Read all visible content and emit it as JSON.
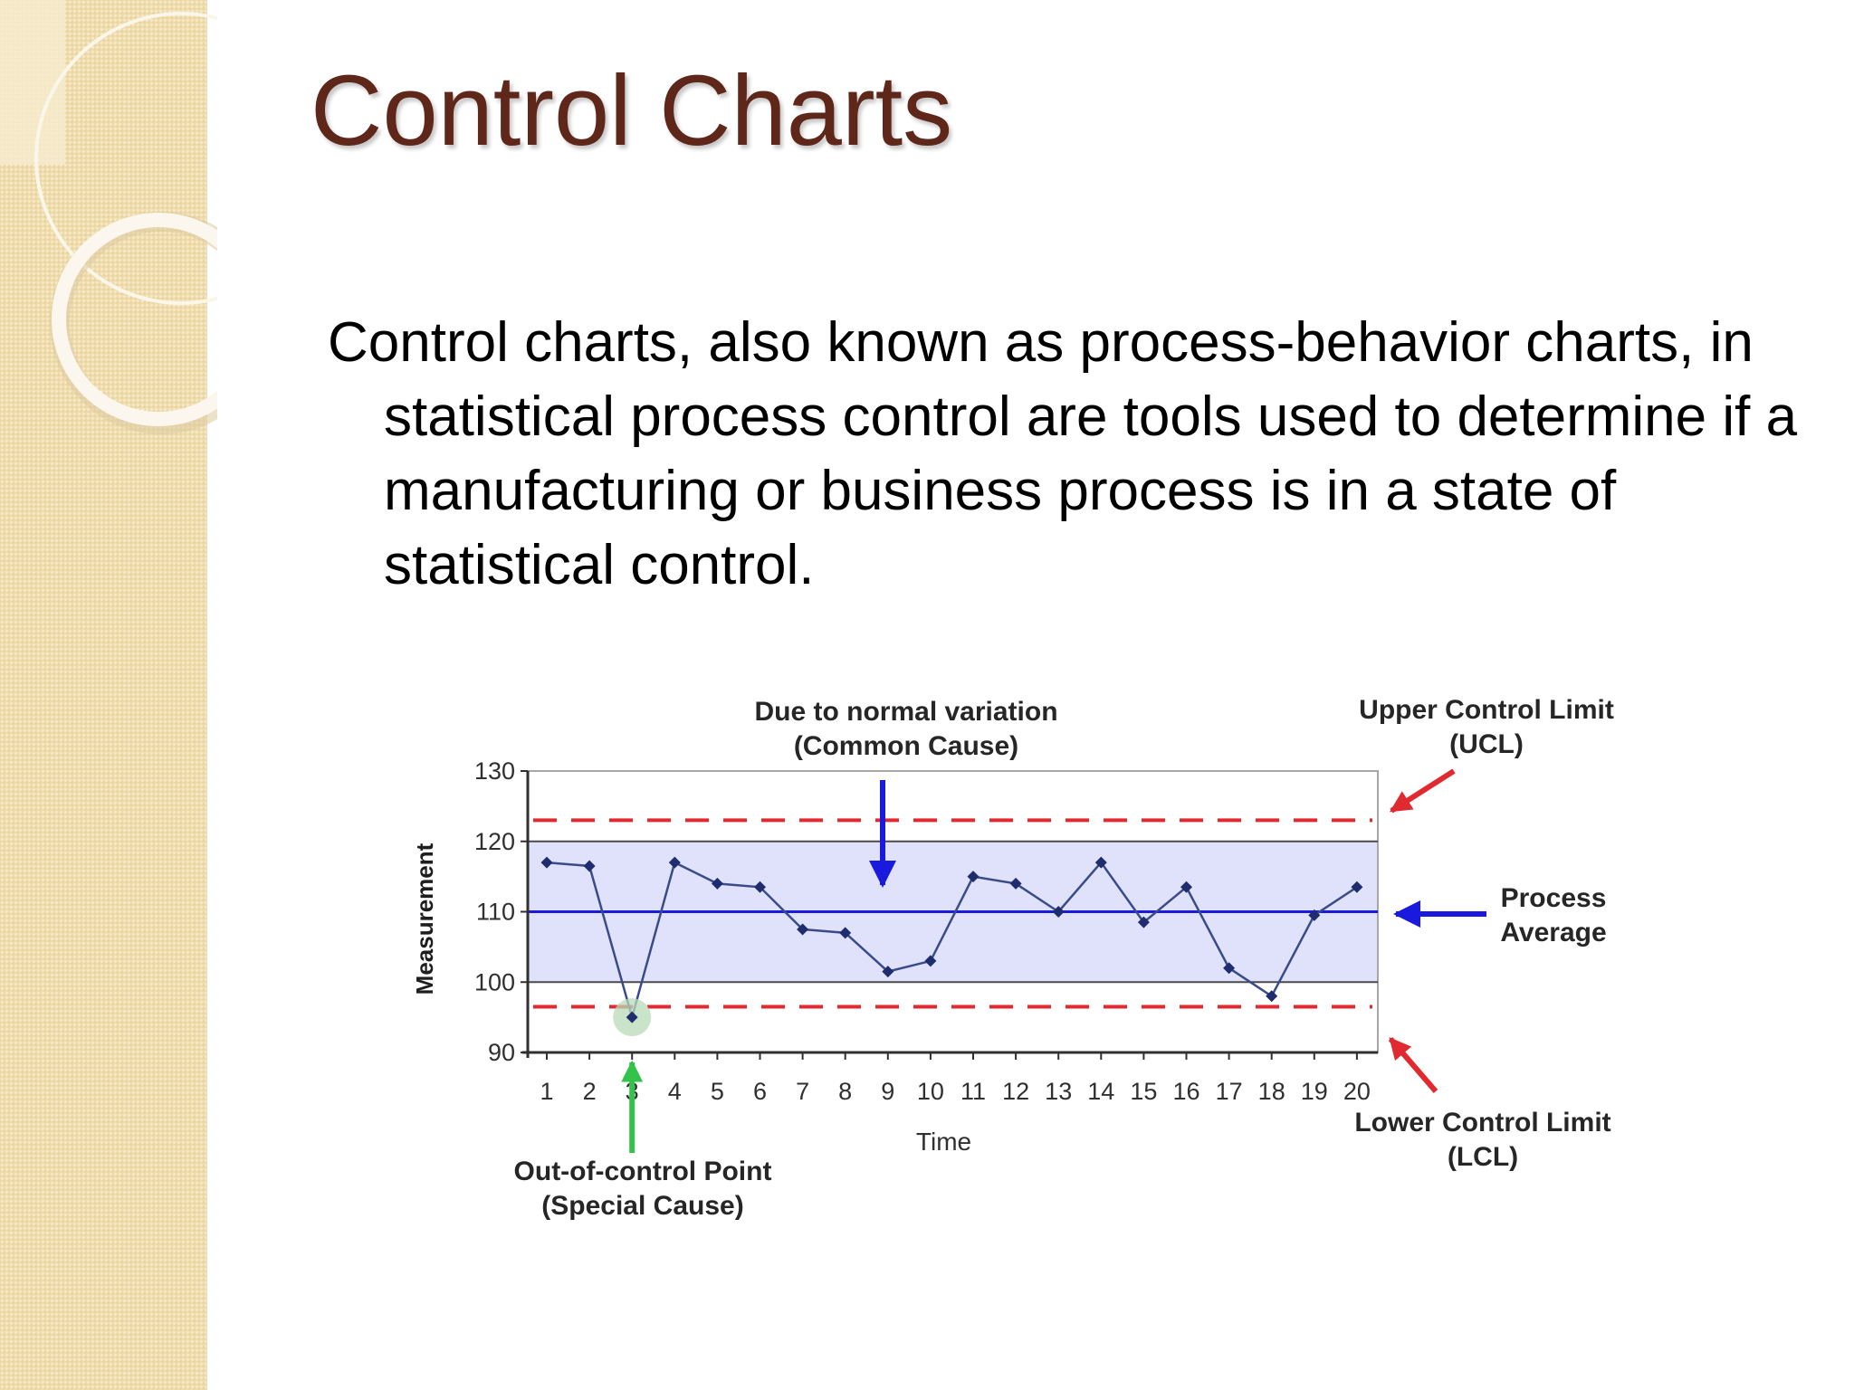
{
  "title": "Control Charts",
  "body": "Control charts, also known as process-behavior charts, in  statistical process control are tools used to determine if a manufacturing or business process is in a state of statistical control.",
  "colors": {
    "title": "#5e271a",
    "sidebar": "#efdcaa",
    "series_line": "#3a4b8a",
    "average_line": "#1a1adf",
    "limit_line": "#e02a30",
    "band_fill": "#dfe2fa",
    "common_cause_arrow": "#1a1adf",
    "ucl_lcl_arrow": "#e02a30",
    "special_cause_arrow": "#33c24a"
  },
  "chart_data": {
    "type": "line",
    "xlabel": "Time",
    "ylabel": "Measurement",
    "ylim": [
      90,
      130
    ],
    "yticks": [
      90,
      100,
      110,
      120,
      130
    ],
    "x": [
      1,
      2,
      3,
      4,
      5,
      6,
      7,
      8,
      9,
      10,
      11,
      12,
      13,
      14,
      15,
      16,
      17,
      18,
      19,
      20
    ],
    "series": [
      {
        "values": [
          117,
          116.5,
          95,
          117,
          114,
          113.5,
          107.5,
          107,
          101.5,
          103,
          115,
          114,
          110,
          117,
          108.5,
          113.5,
          102,
          98,
          109.5,
          113.5
        ]
      }
    ],
    "process_average": 110,
    "ucl": 123,
    "lcl": 96.5,
    "band": [
      100,
      120
    ],
    "horizontal_grid": [
      100,
      110,
      120
    ],
    "out_of_control_index": 2,
    "annotations": {
      "common_cause_line1": "Due to normal variation",
      "common_cause_line2": "(Common Cause)",
      "ucl_line1": "Upper Control Limit",
      "ucl_line2": "(UCL)",
      "average_line1": "Process",
      "average_line2": "Average",
      "lcl_line1": "Lower Control Limit",
      "lcl_line2": "(LCL)",
      "special_line1": "Out-of-control Point",
      "special_line2": "(Special Cause)"
    }
  }
}
